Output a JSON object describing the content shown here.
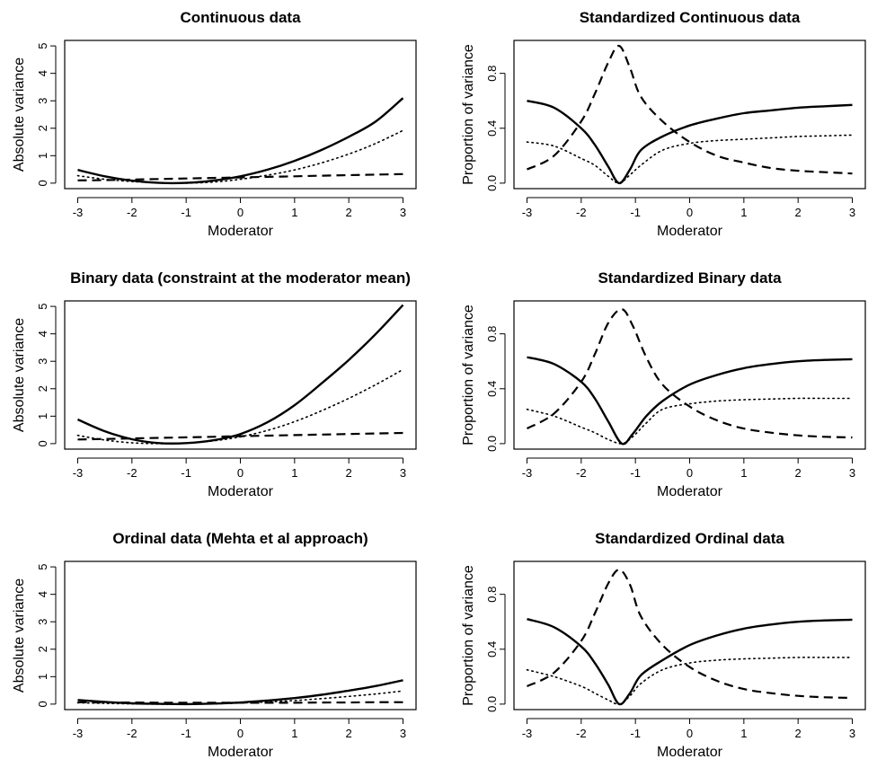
{
  "chart_data": [
    {
      "type": "line",
      "title": "Continuous data",
      "xlabel": "Moderator",
      "ylabel": "Absolute variance",
      "xlim": [
        -3,
        3
      ],
      "ylim": [
        0,
        5
      ],
      "x_ticks": [
        "-3",
        "-2",
        "-1",
        "0",
        "1",
        "2",
        "3"
      ],
      "y_ticks": [
        "0",
        "1",
        "2",
        "3",
        "4",
        "5"
      ],
      "x": [
        -3,
        -2.5,
        -2,
        -1.5,
        -1,
        -0.5,
        0,
        0.5,
        1,
        1.5,
        2,
        2.5,
        3
      ],
      "series": [
        {
          "style": "solid",
          "values": [
            0.48,
            0.25,
            0.09,
            0.01,
            0.01,
            0.09,
            0.25,
            0.49,
            0.81,
            1.21,
            1.69,
            2.25,
            3.1
          ]
        },
        {
          "style": "dotted",
          "values": [
            0.27,
            0.14,
            0.06,
            0.01,
            0.0,
            0.04,
            0.14,
            0.29,
            0.48,
            0.74,
            1.06,
            1.45,
            1.92
          ]
        },
        {
          "style": "dashed",
          "values": [
            0.1,
            0.11,
            0.13,
            0.15,
            0.17,
            0.19,
            0.21,
            0.23,
            0.25,
            0.27,
            0.29,
            0.31,
            0.33
          ]
        }
      ]
    },
    {
      "type": "line",
      "title": "Standardized Continuous data",
      "xlabel": "Moderator",
      "ylabel": "Proportion of variance",
      "xlim": [
        -3,
        3
      ],
      "ylim": [
        0,
        1
      ],
      "x_ticks": [
        "-3",
        "-2",
        "-1",
        "0",
        "1",
        "2",
        "3"
      ],
      "y_ticks": [
        "0.0",
        "0.4",
        "0.8"
      ],
      "x": [
        -3,
        -2.5,
        -2,
        -1.75,
        -1.5,
        -1.3,
        -1.1,
        -0.9,
        -0.5,
        0,
        0.5,
        1,
        1.5,
        2,
        2.5,
        3
      ],
      "series": [
        {
          "style": "solid",
          "values": [
            0.6,
            0.55,
            0.4,
            0.28,
            0.12,
            0.0,
            0.1,
            0.24,
            0.34,
            0.42,
            0.47,
            0.51,
            0.53,
            0.55,
            0.56,
            0.57
          ]
        },
        {
          "style": "dotted",
          "values": [
            0.3,
            0.27,
            0.18,
            0.13,
            0.05,
            0.0,
            0.06,
            0.13,
            0.24,
            0.29,
            0.31,
            0.32,
            0.33,
            0.34,
            0.345,
            0.35
          ]
        },
        {
          "style": "dashed",
          "values": [
            0.1,
            0.2,
            0.45,
            0.65,
            0.88,
            1.0,
            0.84,
            0.63,
            0.45,
            0.3,
            0.2,
            0.15,
            0.11,
            0.09,
            0.08,
            0.07
          ]
        }
      ]
    },
    {
      "type": "line",
      "title": "Binary data (constraint at the moderator mean)",
      "xlabel": "Moderator",
      "ylabel": "Absolute variance",
      "xlim": [
        -3,
        3
      ],
      "ylim": [
        0,
        5
      ],
      "x_ticks": [
        "-3",
        "-2",
        "-1",
        "0",
        "1",
        "2",
        "3"
      ],
      "y_ticks": [
        "0",
        "1",
        "2",
        "3",
        "4",
        "5"
      ],
      "x": [
        -3,
        -2.5,
        -2,
        -1.5,
        -1,
        -0.5,
        0,
        0.5,
        1,
        1.5,
        2,
        2.5,
        3
      ],
      "series": [
        {
          "style": "solid",
          "values": [
            0.88,
            0.45,
            0.16,
            0.02,
            0.02,
            0.12,
            0.35,
            0.78,
            1.4,
            2.2,
            3.05,
            4.0,
            5.05
          ]
        },
        {
          "style": "dotted",
          "values": [
            0.3,
            0.13,
            0.03,
            0.0,
            0.02,
            0.1,
            0.25,
            0.48,
            0.8,
            1.2,
            1.65,
            2.15,
            2.7
          ]
        },
        {
          "style": "dashed",
          "values": [
            0.15,
            0.17,
            0.19,
            0.21,
            0.23,
            0.25,
            0.27,
            0.29,
            0.31,
            0.33,
            0.35,
            0.37,
            0.39
          ]
        }
      ]
    },
    {
      "type": "line",
      "title": "Standardized Binary data",
      "xlabel": "Moderator",
      "ylabel": "Proportion of variance",
      "xlim": [
        -3,
        3
      ],
      "ylim": [
        0,
        1
      ],
      "x_ticks": [
        "-3",
        "-2",
        "-1",
        "0",
        "1",
        "2",
        "3"
      ],
      "y_ticks": [
        "0.0",
        "0.4",
        "0.8"
      ],
      "x": [
        -3,
        -2.5,
        -2,
        -1.75,
        -1.5,
        -1.25,
        -1.05,
        -0.8,
        -0.5,
        0,
        0.5,
        1,
        1.5,
        2,
        2.5,
        3
      ],
      "series": [
        {
          "style": "solid",
          "values": [
            0.63,
            0.58,
            0.45,
            0.33,
            0.16,
            0.0,
            0.07,
            0.2,
            0.31,
            0.43,
            0.5,
            0.55,
            0.58,
            0.6,
            0.61,
            0.615
          ]
        },
        {
          "style": "dotted",
          "values": [
            0.25,
            0.2,
            0.12,
            0.08,
            0.03,
            0.0,
            0.05,
            0.15,
            0.25,
            0.29,
            0.31,
            0.32,
            0.325,
            0.33,
            0.33,
            0.33
          ]
        },
        {
          "style": "dashed",
          "values": [
            0.11,
            0.22,
            0.45,
            0.65,
            0.88,
            0.98,
            0.86,
            0.63,
            0.43,
            0.27,
            0.17,
            0.11,
            0.08,
            0.06,
            0.05,
            0.045
          ]
        }
      ]
    },
    {
      "type": "line",
      "title": "Ordinal data (Mehta et al approach)",
      "xlabel": "Moderator",
      "ylabel": "Absolute variance",
      "xlim": [
        -3,
        3
      ],
      "ylim": [
        0,
        5
      ],
      "x_ticks": [
        "-3",
        "-2",
        "-1",
        "0",
        "1",
        "2",
        "3"
      ],
      "y_ticks": [
        "0",
        "1",
        "2",
        "3",
        "4",
        "5"
      ],
      "x": [
        -3,
        -2.5,
        -2,
        -1.5,
        -1,
        -0.5,
        0,
        0.5,
        1,
        1.5,
        2,
        2.5,
        3
      ],
      "series": [
        {
          "style": "solid",
          "values": [
            0.15,
            0.08,
            0.03,
            0.01,
            0.0,
            0.02,
            0.06,
            0.13,
            0.22,
            0.34,
            0.49,
            0.66,
            0.87
          ]
        },
        {
          "style": "dotted",
          "values": [
            0.05,
            0.03,
            0.01,
            0.0,
            0.0,
            0.01,
            0.04,
            0.08,
            0.13,
            0.2,
            0.28,
            0.37,
            0.48
          ]
        },
        {
          "style": "dashed",
          "values": [
            0.07,
            0.06,
            0.06,
            0.05,
            0.05,
            0.05,
            0.05,
            0.05,
            0.05,
            0.06,
            0.06,
            0.07,
            0.07
          ]
        }
      ]
    },
    {
      "type": "line",
      "title": "Standardized Ordinal data",
      "xlabel": "Moderator",
      "ylabel": "Proportion of variance",
      "xlim": [
        -3,
        3
      ],
      "ylim": [
        0,
        1
      ],
      "x_ticks": [
        "-3",
        "-2",
        "-1",
        "0",
        "1",
        "2",
        "3"
      ],
      "y_ticks": [
        "0.0",
        "0.4",
        "0.8"
      ],
      "x": [
        -3,
        -2.5,
        -2,
        -1.75,
        -1.5,
        -1.3,
        -1.1,
        -0.9,
        -0.5,
        0,
        0.5,
        1,
        1.5,
        2,
        2.5,
        3
      ],
      "series": [
        {
          "style": "solid",
          "values": [
            0.62,
            0.56,
            0.42,
            0.3,
            0.14,
            0.0,
            0.08,
            0.21,
            0.32,
            0.43,
            0.5,
            0.55,
            0.58,
            0.6,
            0.61,
            0.615
          ]
        },
        {
          "style": "dotted",
          "values": [
            0.25,
            0.2,
            0.13,
            0.08,
            0.03,
            0.0,
            0.06,
            0.15,
            0.25,
            0.3,
            0.32,
            0.33,
            0.335,
            0.34,
            0.34,
            0.34
          ]
        },
        {
          "style": "dashed",
          "values": [
            0.13,
            0.23,
            0.46,
            0.66,
            0.88,
            0.98,
            0.87,
            0.64,
            0.43,
            0.27,
            0.17,
            0.11,
            0.08,
            0.06,
            0.05,
            0.045
          ]
        }
      ]
    }
  ]
}
